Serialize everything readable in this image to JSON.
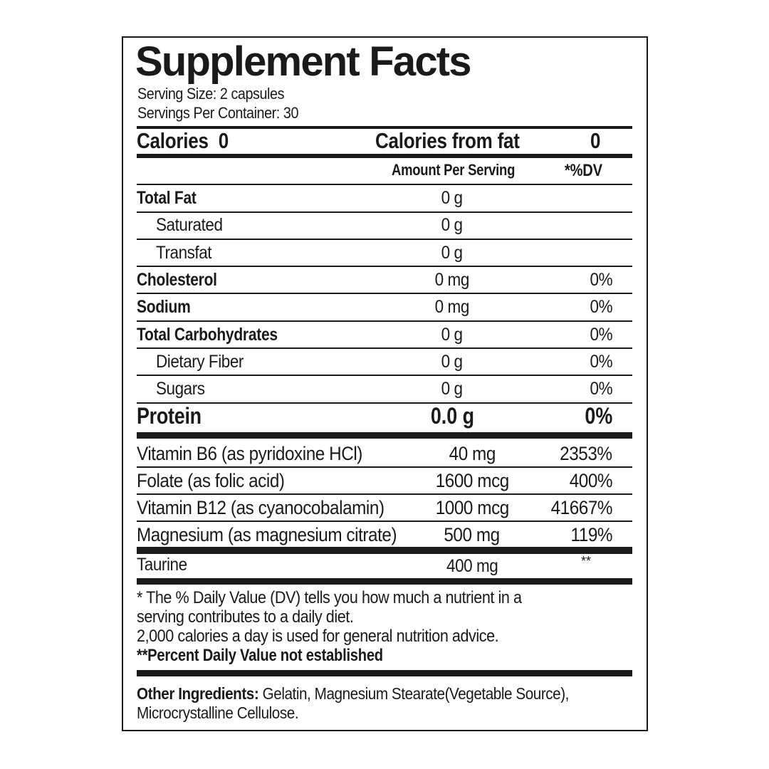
{
  "title": "Supplement Facts",
  "serving_size": "Serving Size: 2 capsules",
  "servings_per_container": "Servings Per Container: 30",
  "calories_label": "Calories",
  "calories_value": "0",
  "calories_from_fat_label": "Calories from fat",
  "calories_from_fat_value": "0",
  "header": {
    "amount": "Amount Per Serving",
    "dv": "*%DV"
  },
  "nutrients": [
    {
      "name": "Total Fat",
      "amount": "0 g",
      "dv": "",
      "bold": true,
      "indent": false
    },
    {
      "name": "Saturated",
      "amount": "0 g",
      "dv": "",
      "bold": false,
      "indent": true
    },
    {
      "name": "Transfat",
      "amount": "0 g",
      "dv": "",
      "bold": false,
      "indent": true
    },
    {
      "name": "Cholesterol",
      "amount": "0 mg",
      "dv": "0%",
      "bold": true,
      "indent": false
    },
    {
      "name": "Sodium",
      "amount": "0 mg",
      "dv": "0%",
      "bold": true,
      "indent": false
    },
    {
      "name": "Total Carbohydrates",
      "amount": "0 g",
      "dv": "0%",
      "bold": true,
      "indent": false
    },
    {
      "name": "Dietary Fiber",
      "amount": "0 g",
      "dv": "0%",
      "bold": false,
      "indent": true
    },
    {
      "name": "Sugars",
      "amount": "0 g",
      "dv": "0%",
      "bold": false,
      "indent": true
    }
  ],
  "protein": {
    "name": "Protein",
    "amount": "0.0 g",
    "dv": "0%"
  },
  "vitamins": [
    {
      "name": "Vitamin B6 (as pyridoxine HCl)",
      "amount": "40 mg",
      "dv": "2353%"
    },
    {
      "name": "Folate (as folic acid)",
      "amount": "1600 mcg",
      "dv": "400%"
    },
    {
      "name": "Vitamin B12 (as cyanocobalamin)",
      "amount": "1000 mcg",
      "dv": "41667%"
    },
    {
      "name": "Magnesium (as magnesium citrate)",
      "amount": "500 mg",
      "dv": "119%"
    }
  ],
  "other": {
    "name": "Taurine",
    "amount": "400 mg",
    "dv": "**"
  },
  "footnotes": [
    "* The % Daily Value (DV) tells you how much a nutrient in a",
    "serving contributes to a daily diet.",
    "2,000 calories a day is used for general nutrition advice."
  ],
  "footnote_bold": "**Percent Daily Value not established",
  "other_ingredients_label": "Other Ingredients:",
  "other_ingredients_line1": " Gelatin, Magnesium Stearate(Vegetable Source),",
  "other_ingredients_line2": "Microcrystalline Cellulose."
}
